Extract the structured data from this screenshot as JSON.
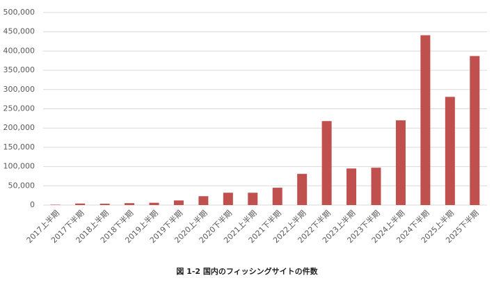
{
  "chart_data": {
    "type": "bar",
    "caption": "図 1-2 国内のフィッシングサイトの件数",
    "categories": [
      "2017上半期",
      "2017下半期",
      "2018上半期",
      "2018下半期",
      "2019上半期",
      "2019下半期",
      "2020上半期",
      "2020下半期",
      "2021上半期",
      "2021下半期",
      "2022上半期",
      "2022下半期",
      "2023上半期",
      "2023下半期",
      "2024上半期",
      "2024下半期",
      "2025上半期",
      "2025下半期"
    ],
    "values": [
      1000,
      4000,
      3500,
      5000,
      6000,
      12000,
      23000,
      32000,
      32000,
      45000,
      81000,
      218000,
      95000,
      97000,
      220000,
      441000,
      281000,
      387000
    ],
    "color": "#c0504d",
    "ylim": [
      0,
      500000
    ],
    "yticks": [
      0,
      {
        "value": 50000,
        "label": "50,000"
      },
      {
        "value": 100000,
        "label": "100,000"
      },
      {
        "value": 150000,
        "label": "150,000"
      },
      {
        "value": 200000,
        "label": "200,000"
      },
      {
        "value": 250000,
        "label": "250,000"
      },
      {
        "value": 300000,
        "label": "300,000"
      },
      {
        "value": 350000,
        "label": "350,000"
      },
      {
        "value": 400000,
        "label": "400,000"
      },
      {
        "value": 450000,
        "label": "450,000"
      },
      {
        "value": 500000,
        "label": "500,000"
      }
    ],
    "grid": true
  }
}
